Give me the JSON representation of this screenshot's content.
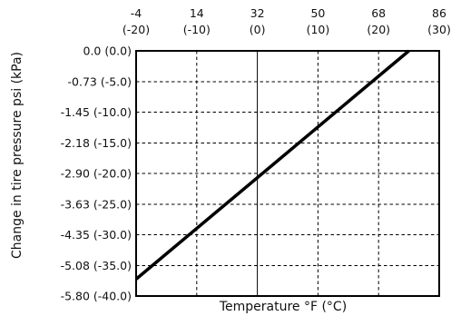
{
  "chart_data": {
    "type": "line",
    "xlabel": "Temperature °F (°C)",
    "ylabel": "Change in tire pressure psi (kPa)",
    "x_ticks": [
      {
        "value": -4,
        "f": "-4",
        "c": "(-20)"
      },
      {
        "value": 14,
        "f": "14",
        "c": "(-10)"
      },
      {
        "value": 32,
        "f": "32",
        "c": "(0)"
      },
      {
        "value": 50,
        "f": "50",
        "c": "(10)"
      },
      {
        "value": 68,
        "f": "68",
        "c": "(20)"
      },
      {
        "value": 86,
        "f": "86",
        "c": "(30)"
      }
    ],
    "y_ticks": [
      {
        "value": 0.0,
        "label": "0.0 (0.0)"
      },
      {
        "value": -0.73,
        "label": "-0.73 (-5.0)"
      },
      {
        "value": -1.45,
        "label": "-1.45 (-10.0)"
      },
      {
        "value": -2.18,
        "label": "-2.18 (-15.0)"
      },
      {
        "value": -2.9,
        "label": "-2.90 (-20.0)"
      },
      {
        "value": -3.63,
        "label": "-3.63 (-25.0)"
      },
      {
        "value": -4.35,
        "label": "-4.35 (-30.0)"
      },
      {
        "value": -5.08,
        "label": "-5.08 (-35.0)"
      },
      {
        "value": -5.8,
        "label": "-5.80 (-40.0)"
      }
    ],
    "xlim": [
      -4,
      86
    ],
    "ylim": [
      -5.8,
      0.0
    ],
    "grid": true,
    "reference_line_x": 32,
    "series": [
      {
        "x": [
          -4,
          77
        ],
        "y": [
          -5.4,
          0.0
        ]
      }
    ]
  }
}
